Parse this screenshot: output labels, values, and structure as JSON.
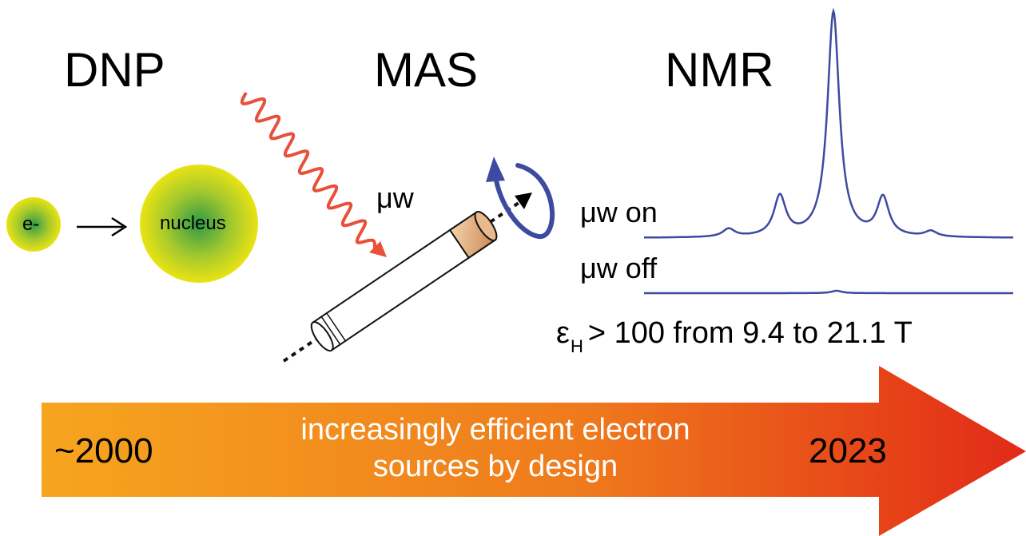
{
  "headings": {
    "dnp": "DNP",
    "mas": "MAS",
    "nmr": "NMR"
  },
  "dnp": {
    "electron_label": "e-",
    "nucleus_label": "nucleus"
  },
  "mas": {
    "microwave_label": "μw"
  },
  "nmr": {
    "on_label": "μw on",
    "off_label": "μw off",
    "enhancement": {
      "symbol": "ε",
      "subscript": "H",
      "rest": "> 100 from 9.4 to 21.1 T"
    }
  },
  "timeline": {
    "start_year": "~2000",
    "end_year": "2023",
    "caption_line1": "increasingly efficient electron",
    "caption_line2": "sources by design"
  },
  "colors": {
    "spectrum_line": "#3d4aa0",
    "rotation_arrow": "#3d4aa0",
    "microwave": "#e8503a",
    "arrow_start": "#f6a51f",
    "arrow_end": "#e22a17",
    "sphere_center": "#2f9a47",
    "sphere_edge": "#e9e313"
  },
  "icons": [
    "electron-sphere",
    "nucleus-sphere",
    "transfer-arrow",
    "microwave-wave",
    "sample-rotor",
    "rotation-arrow",
    "spin-axis",
    "nmr-spectrum",
    "timeline-arrow"
  ]
}
